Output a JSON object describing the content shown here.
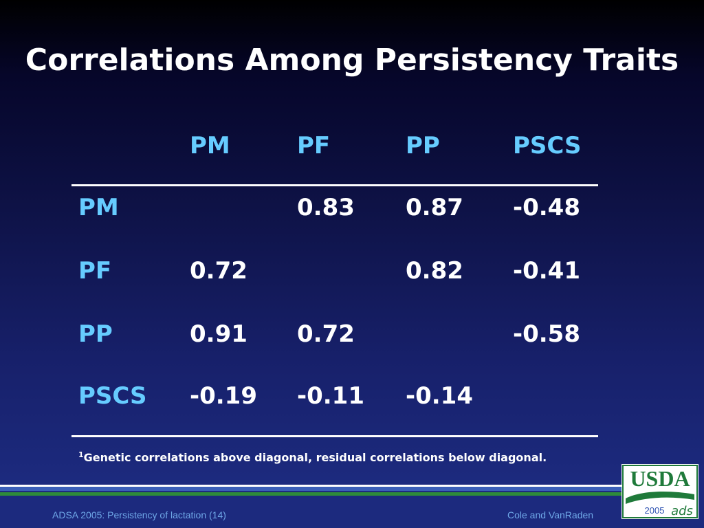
{
  "slide": {
    "title": "Correlations Among Persistency Traits"
  },
  "table": {
    "columns": [
      "PM",
      "PF",
      "PP",
      "PSCS"
    ],
    "rows": [
      {
        "label": "PM",
        "cells": [
          "",
          "0.83",
          "0.87",
          "-0.48"
        ]
      },
      {
        "label": "PF",
        "cells": [
          "0.72",
          "",
          "0.82",
          "-0.41"
        ]
      },
      {
        "label": "PP",
        "cells": [
          "0.91",
          "0.72",
          "",
          "-0.58"
        ]
      },
      {
        "label": "PSCS",
        "cells": [
          "-0.19",
          "-0.11",
          "-0.14",
          ""
        ]
      }
    ]
  },
  "footnote": {
    "marker": "1",
    "text": "Genetic correlations above diagonal, residual correlations below diagonal."
  },
  "footer": {
    "left": "ADSA 2005: Persistency of lactation (14)",
    "right": "Cole and VanRaden"
  },
  "logo": {
    "text": "USDA",
    "year": "2005",
    "mark": "ads"
  },
  "colors": {
    "header_text": "#66ccff",
    "value_text": "#ffffff",
    "stripe_blue": "#3a5fb8",
    "stripe_green": "#2e8b3a",
    "logo_green": "#1f7a3a",
    "footer_text": "#6fa8e8"
  }
}
